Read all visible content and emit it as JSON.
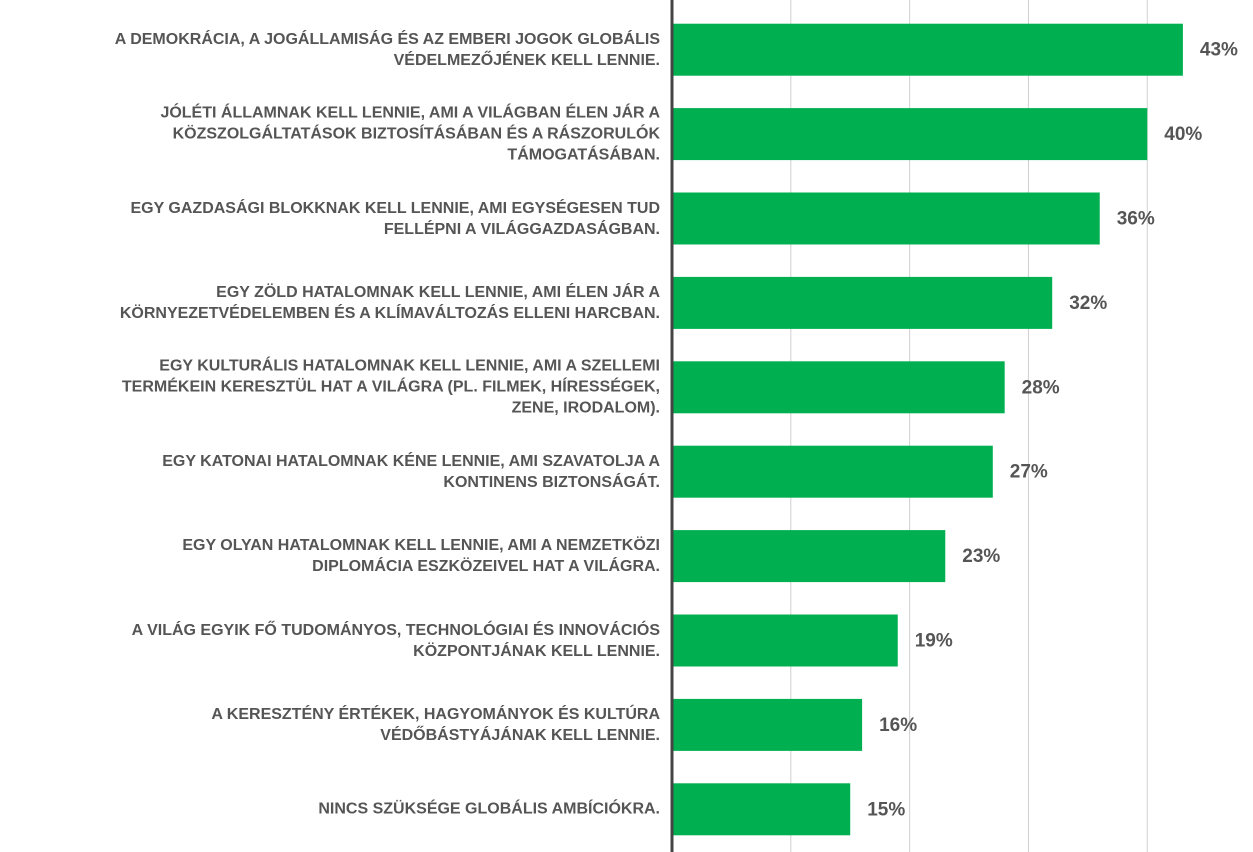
{
  "chart_data": {
    "type": "bar",
    "orientation": "horizontal",
    "categories": [
      "A DEMOKRÁCIA, A JOGÁLLAMISÁG ÉS AZ EMBERI JOGOK GLOBÁLIS\nVÉDELMEZŐJÉNEK KELL LENNIE.",
      "JÓLÉTI ÁLLAMNAK KELL LENNIE, AMI A VILÁGBAN ÉLEN JÁR A\nKÖZSZOLGÁLTATÁSOK BIZTOSÍTÁSÁBAN ÉS A RÁSZORULÓK\nTÁMOGATÁSÁBAN.",
      "EGY GAZDASÁGI BLOKKNAK KELL LENNIE, AMI EGYSÉGESEN TUD\nFELLÉPNI A VILÁGGAZDASÁGBAN.",
      "EGY ZÖLD HATALOMNAK KELL LENNIE, AMI ÉLEN JÁR A\nKÖRNYEZETVÉDELEMBEN ÉS A KLÍMAVÁLTOZÁS ELLENI HARCBAN.",
      "EGY KULTURÁLIS HATALOMNAK KELL LENNIE, AMI A SZELLEMI\nTERMÉKEIN KERESZTÜL HAT A VILÁGRA (PL. FILMEK, HÍRESSÉGEK,\nZENE, IRODALOM).",
      "EGY KATONAI HATALOMNAK KÉNE LENNIE, AMI SZAVATOLJA A\nKONTINENS BIZTONSÁGÁT.",
      "EGY OLYAN HATALOMNAK KELL LENNIE, AMI A NEMZETKÖZI\nDIPLOMÁCIA ESZKÖZEIVEL HAT A VILÁGRA.",
      "A VILÁG EGYIK FŐ TUDOMÁNYOS, TECHNOLÓGIAI ÉS INNOVÁCIÓS\nKÖZPONTJÁNAK KELL LENNIE.",
      "A KERESZTÉNY ÉRTÉKEK, HAGYOMÁNYOK ÉS KULTÚRA\nVÉDŐBÁSTYÁJÁNAK KELL LENNIE.",
      "NINCS SZÜKSÉGE GLOBÁLIS AMBÍCIÓKRA."
    ],
    "values": [
      43,
      40,
      36,
      32,
      28,
      27,
      23,
      19,
      16,
      15
    ],
    "value_labels": [
      "43%",
      "40%",
      "36%",
      "32%",
      "28%",
      "27%",
      "23%",
      "19%",
      "16%",
      "15%"
    ],
    "color": "#00b050",
    "xlim": [
      0,
      48.9
    ],
    "xticks": [
      10,
      20,
      30,
      40
    ],
    "grid": true
  }
}
